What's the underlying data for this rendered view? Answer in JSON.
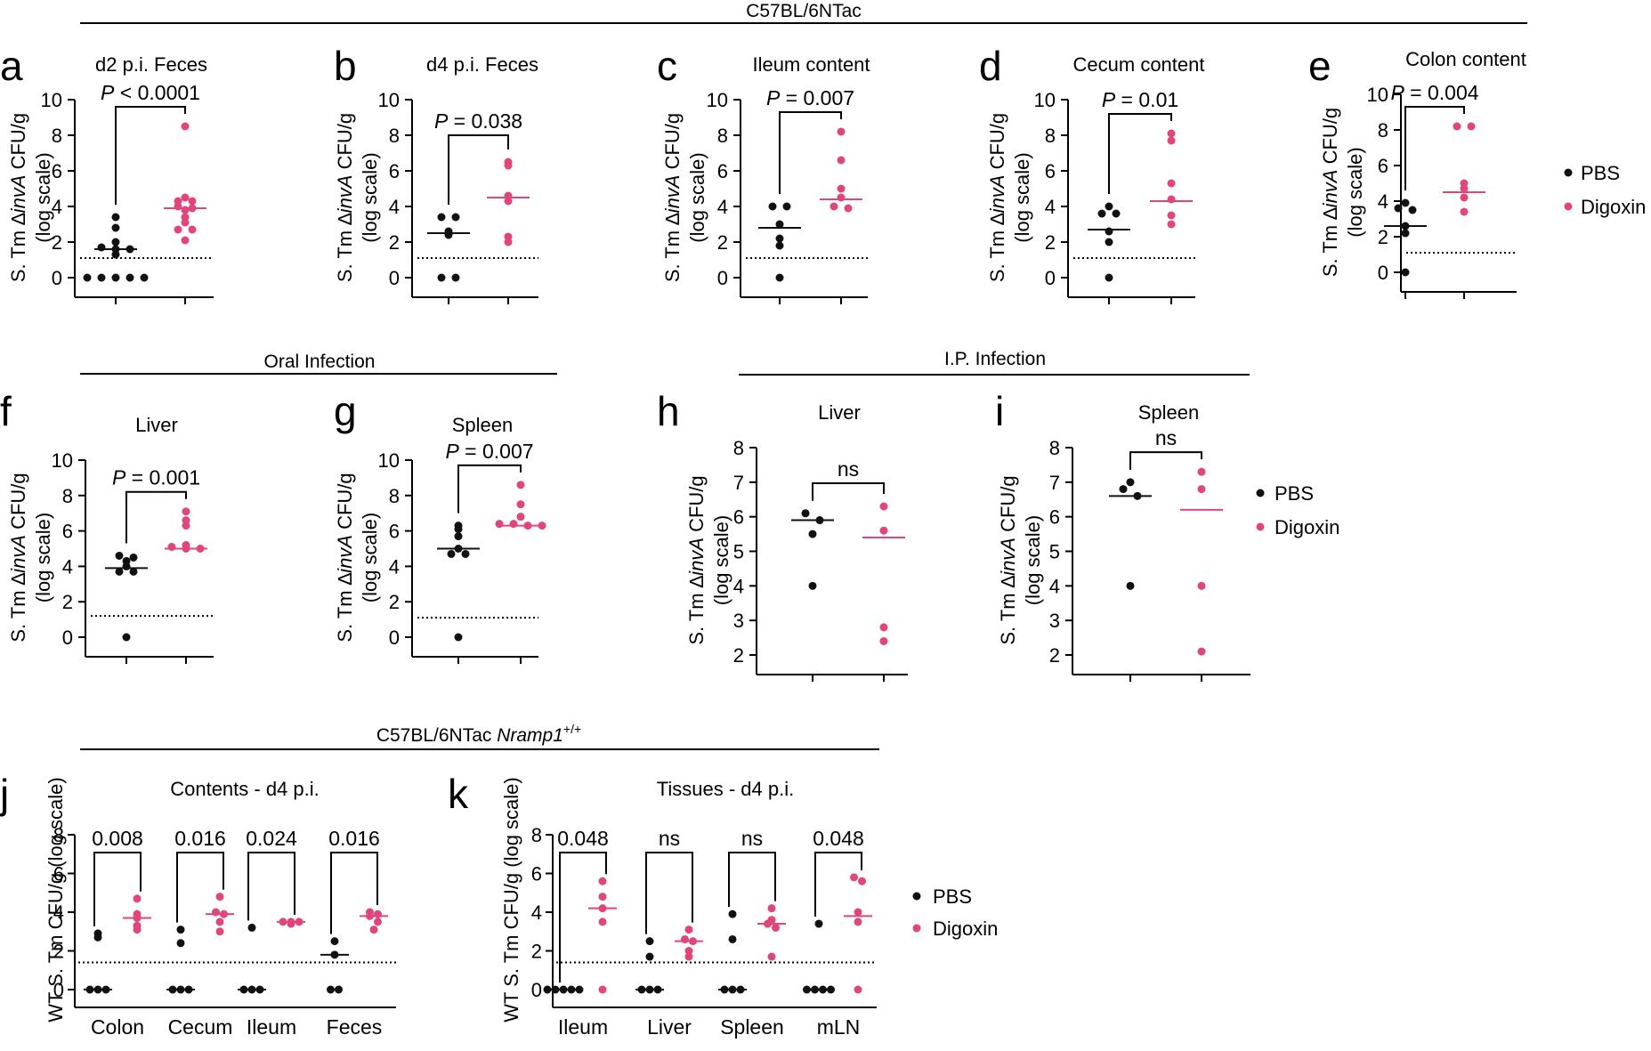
{
  "colors": {
    "pbs": "#111111",
    "digoxin": "#e0457b",
    "line": "#000000"
  },
  "headers": {
    "top": "C57BL/6NTac",
    "oral": "Oral Infection",
    "ip": "I.P. Infection",
    "bottom_main": "C57BL/6NTac ",
    "bottom_gene": "Nramp1",
    "bottom_sup": "+/+"
  },
  "legend": {
    "pbs": "PBS",
    "digoxin": "Digoxin"
  },
  "ylabel_common": {
    "prefix": "S. Tm ∆",
    "gene": "invA",
    "suffix": " CFU/g",
    "line2": "(log scale)"
  },
  "ylabel_wt": "WT S. Tm CFU/g (log scale)",
  "chart_data": [
    {
      "panel": "a",
      "type": "scatter",
      "title": "d2 p.i. Feces",
      "ylim": [
        0,
        10
      ],
      "yticks": [
        "0",
        "2",
        "4",
        "6",
        "8",
        "10"
      ],
      "lod": 1.1,
      "stat": {
        "p": "P",
        "rel": " < 0.0001"
      },
      "groups": [
        {
          "name": "PBS",
          "values": [
            3.4,
            2.8,
            2.0,
            1.7,
            1.6,
            1.6,
            1.3,
            0,
            0,
            0,
            0,
            0
          ],
          "median": 1.6
        },
        {
          "name": "Digoxin",
          "values": [
            8.5,
            4.5,
            4.3,
            4.3,
            4.0,
            3.9,
            3.8,
            3.4,
            3.1,
            2.7,
            2.7,
            2.1
          ],
          "median": 3.9
        }
      ]
    },
    {
      "panel": "b",
      "type": "scatter",
      "title": "d4 p.i. Feces",
      "ylim": [
        0,
        10
      ],
      "yticks": [
        "0",
        "2",
        "4",
        "6",
        "8",
        "10"
      ],
      "lod": 1.1,
      "stat": {
        "p": "P",
        "rel": " = 0.038"
      },
      "groups": [
        {
          "name": "PBS",
          "values": [
            3.4,
            3.4,
            2.6,
            2.4,
            0,
            0
          ],
          "median": 2.5
        },
        {
          "name": "Digoxin",
          "values": [
            6.5,
            6.3,
            4.6,
            4.3,
            2.3,
            2.0
          ],
          "median": 4.5
        }
      ]
    },
    {
      "panel": "c",
      "type": "scatter",
      "title": "Ileum content",
      "ylim": [
        0,
        10
      ],
      "yticks": [
        "0",
        "2",
        "4",
        "6",
        "8",
        "10"
      ],
      "lod": 1.1,
      "stat": {
        "p": "P",
        "rel": " = 0.007"
      },
      "groups": [
        {
          "name": "PBS",
          "values": [
            4.0,
            4.0,
            3.0,
            2.2,
            1.8,
            0
          ],
          "median": 2.8
        },
        {
          "name": "Digoxin",
          "values": [
            8.2,
            6.6,
            5.0,
            4.5,
            4.0,
            3.9
          ],
          "median": 4.4
        }
      ]
    },
    {
      "panel": "d",
      "type": "scatter",
      "title": "Cecum content",
      "ylim": [
        0,
        10
      ],
      "yticks": [
        "0",
        "2",
        "4",
        "6",
        "8",
        "10"
      ],
      "lod": 1.1,
      "stat": {
        "p": "P",
        "rel": " = 0.01"
      },
      "groups": [
        {
          "name": "PBS",
          "values": [
            4.0,
            3.6,
            3.6,
            2.6,
            2.0,
            0
          ],
          "median": 2.7
        },
        {
          "name": "Digoxin",
          "values": [
            8.1,
            7.7,
            5.3,
            4.4,
            3.5,
            3.0
          ],
          "median": 4.3
        }
      ]
    },
    {
      "panel": "e",
      "type": "scatter",
      "title": "Colon content",
      "ylim": [
        0,
        10
      ],
      "yticks": [
        "0",
        "2",
        "4",
        "6",
        "8",
        "10"
      ],
      "lod": 1.1,
      "stat": {
        "p": "P",
        "rel": " = 0.004"
      },
      "groups": [
        {
          "name": "PBS",
          "values": [
            3.9,
            3.6,
            3.5,
            2.6,
            2.2,
            0
          ],
          "median": 2.6
        },
        {
          "name": "Digoxin",
          "values": [
            8.2,
            8.2,
            5.0,
            4.7,
            4.2,
            3.4
          ],
          "median": 4.5
        }
      ]
    },
    {
      "panel": "f",
      "type": "scatter",
      "title": "Liver",
      "ylim": [
        0,
        10
      ],
      "yticks": [
        "0",
        "2",
        "4",
        "6",
        "8",
        "10"
      ],
      "lod": 1.2,
      "stat": {
        "p": "P",
        "rel": " = 0.001"
      },
      "groups": [
        {
          "name": "PBS",
          "values": [
            4.6,
            4.5,
            4.3,
            4.0,
            3.7,
            3.7,
            0
          ],
          "median": 3.9
        },
        {
          "name": "Digoxin",
          "values": [
            7.1,
            6.6,
            6.3,
            5.2,
            5.1,
            5.0,
            5.0
          ],
          "median": 5.0
        }
      ]
    },
    {
      "panel": "g",
      "type": "scatter",
      "title": "Spleen",
      "ylim": [
        0,
        10
      ],
      "yticks": [
        "0",
        "2",
        "4",
        "6",
        "8",
        "10"
      ],
      "lod": 1.1,
      "stat": {
        "p": "P",
        "rel": " = 0.007"
      },
      "groups": [
        {
          "name": "PBS",
          "values": [
            6.3,
            6.1,
            5.7,
            5.0,
            4.7,
            4.7,
            0
          ],
          "median": 5.0
        },
        {
          "name": "Digoxin",
          "values": [
            8.6,
            7.5,
            6.8,
            6.4,
            6.4,
            6.3,
            6.3
          ],
          "median": 6.3
        }
      ]
    },
    {
      "panel": "h",
      "type": "scatter",
      "title": "Liver",
      "ylim": [
        2,
        8
      ],
      "yticks": [
        "2",
        "3",
        "4",
        "5",
        "6",
        "7",
        "8"
      ],
      "lod": null,
      "stat": {
        "p": "",
        "rel": "ns"
      },
      "groups": [
        {
          "name": "PBS",
          "values": [
            6.1,
            5.9,
            5.5,
            4.0
          ],
          "median": 5.9
        },
        {
          "name": "Digoxin",
          "values": [
            6.3,
            5.6,
            2.8,
            2.4
          ],
          "median": 5.4
        }
      ]
    },
    {
      "panel": "i",
      "type": "scatter",
      "title": "Spleen",
      "ylim": [
        2,
        8
      ],
      "yticks": [
        "2",
        "3",
        "4",
        "5",
        "6",
        "7",
        "8"
      ],
      "lod": null,
      "stat": {
        "p": "",
        "rel": "ns"
      },
      "groups": [
        {
          "name": "PBS",
          "values": [
            7.0,
            6.8,
            6.6,
            4.0
          ],
          "median": 6.6
        },
        {
          "name": "Digoxin",
          "values": [
            7.3,
            6.8,
            4.0,
            2.1
          ],
          "median": 6.2
        }
      ]
    },
    {
      "panel": "j",
      "type": "grouped-scatter",
      "title": "Contents - d4 p.i.",
      "ylim": [
        0,
        8
      ],
      "yticks": [
        "0",
        "2",
        "4",
        "6",
        "8"
      ],
      "lod": 1.4,
      "categories": [
        "Colon",
        "Cecum",
        "Ileum",
        "Feces"
      ],
      "stats": [
        "0.008",
        "0.016",
        "0.024",
        "0.016"
      ],
      "groups": [
        {
          "name": "PBS",
          "values": [
            [
              2.9,
              2.7,
              0,
              0,
              0
            ],
            [
              3.1,
              2.4,
              0,
              0,
              0
            ],
            [
              3.2,
              0,
              0,
              0
            ],
            [
              2.5,
              1.8,
              0,
              0
            ]
          ],
          "medians": [
            0,
            0,
            0,
            1.8
          ]
        },
        {
          "name": "Digoxin",
          "values": [
            [
              4.7,
              3.9,
              3.7,
              3.3,
              3.1
            ],
            [
              4.8,
              4.0,
              3.9,
              3.5,
              3.0
            ],
            [
              3.5,
              3.5,
              3.5,
              3.4
            ],
            [
              4.0,
              3.9,
              3.8,
              3.5,
              3.1
            ]
          ],
          "medians": [
            3.7,
            3.9,
            3.5,
            3.8
          ]
        }
      ]
    },
    {
      "panel": "k",
      "type": "grouped-scatter",
      "title": "Tissues - d4 p.i.",
      "ylim": [
        0,
        8
      ],
      "yticks": [
        "0",
        "2",
        "4",
        "6",
        "8"
      ],
      "lod": 1.4,
      "categories": [
        "Ileum",
        "Liver",
        "Spleen",
        "mLN"
      ],
      "stats": [
        "0.048",
        "ns",
        "ns",
        "0.048"
      ],
      "groups": [
        {
          "name": "PBS",
          "values": [
            [
              0,
              0,
              0,
              0,
              0
            ],
            [
              2.5,
              1.7,
              0,
              0,
              0
            ],
            [
              3.9,
              2.6,
              0,
              0,
              0
            ],
            [
              3.4,
              0,
              0,
              0,
              0
            ]
          ],
          "medians": [
            0,
            0,
            0,
            0
          ]
        },
        {
          "name": "Digoxin",
          "values": [
            [
              5.6,
              4.8,
              4.2,
              3.5,
              0
            ],
            [
              3.1,
              2.6,
              2.5,
              2.0,
              1.7
            ],
            [
              4.2,
              3.6,
              3.4,
              3.2,
              1.7
            ],
            [
              5.8,
              5.6,
              4.0,
              3.5,
              0
            ]
          ],
          "medians": [
            4.2,
            2.5,
            3.4,
            3.8
          ]
        }
      ]
    }
  ]
}
